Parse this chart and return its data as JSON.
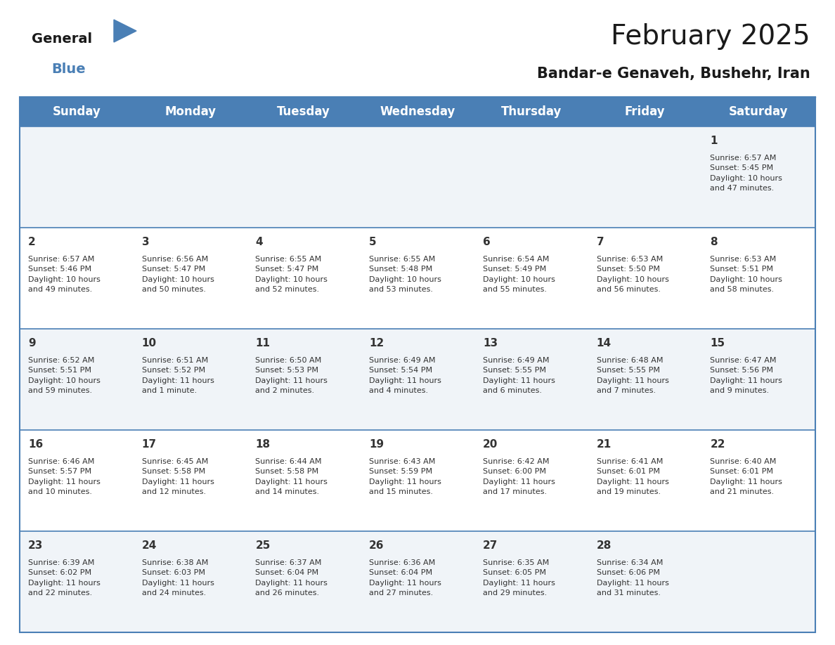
{
  "title": "February 2025",
  "subtitle": "Bandar-e Genaveh, Bushehr, Iran",
  "header_color": "#4a7fb5",
  "header_text_color": "#ffffff",
  "row_bg_even": "#f0f4f8",
  "row_bg_odd": "#ffffff",
  "text_color": "#333333",
  "border_color": "#4a7fb5",
  "row_line_color": "#4a7fb5",
  "days_of_week": [
    "Sunday",
    "Monday",
    "Tuesday",
    "Wednesday",
    "Thursday",
    "Friday",
    "Saturday"
  ],
  "weeks": [
    [
      {
        "day": "",
        "info": ""
      },
      {
        "day": "",
        "info": ""
      },
      {
        "day": "",
        "info": ""
      },
      {
        "day": "",
        "info": ""
      },
      {
        "day": "",
        "info": ""
      },
      {
        "day": "",
        "info": ""
      },
      {
        "day": "1",
        "info": "Sunrise: 6:57 AM\nSunset: 5:45 PM\nDaylight: 10 hours\nand 47 minutes."
      }
    ],
    [
      {
        "day": "2",
        "info": "Sunrise: 6:57 AM\nSunset: 5:46 PM\nDaylight: 10 hours\nand 49 minutes."
      },
      {
        "day": "3",
        "info": "Sunrise: 6:56 AM\nSunset: 5:47 PM\nDaylight: 10 hours\nand 50 minutes."
      },
      {
        "day": "4",
        "info": "Sunrise: 6:55 AM\nSunset: 5:47 PM\nDaylight: 10 hours\nand 52 minutes."
      },
      {
        "day": "5",
        "info": "Sunrise: 6:55 AM\nSunset: 5:48 PM\nDaylight: 10 hours\nand 53 minutes."
      },
      {
        "day": "6",
        "info": "Sunrise: 6:54 AM\nSunset: 5:49 PM\nDaylight: 10 hours\nand 55 minutes."
      },
      {
        "day": "7",
        "info": "Sunrise: 6:53 AM\nSunset: 5:50 PM\nDaylight: 10 hours\nand 56 minutes."
      },
      {
        "day": "8",
        "info": "Sunrise: 6:53 AM\nSunset: 5:51 PM\nDaylight: 10 hours\nand 58 minutes."
      }
    ],
    [
      {
        "day": "9",
        "info": "Sunrise: 6:52 AM\nSunset: 5:51 PM\nDaylight: 10 hours\nand 59 minutes."
      },
      {
        "day": "10",
        "info": "Sunrise: 6:51 AM\nSunset: 5:52 PM\nDaylight: 11 hours\nand 1 minute."
      },
      {
        "day": "11",
        "info": "Sunrise: 6:50 AM\nSunset: 5:53 PM\nDaylight: 11 hours\nand 2 minutes."
      },
      {
        "day": "12",
        "info": "Sunrise: 6:49 AM\nSunset: 5:54 PM\nDaylight: 11 hours\nand 4 minutes."
      },
      {
        "day": "13",
        "info": "Sunrise: 6:49 AM\nSunset: 5:55 PM\nDaylight: 11 hours\nand 6 minutes."
      },
      {
        "day": "14",
        "info": "Sunrise: 6:48 AM\nSunset: 5:55 PM\nDaylight: 11 hours\nand 7 minutes."
      },
      {
        "day": "15",
        "info": "Sunrise: 6:47 AM\nSunset: 5:56 PM\nDaylight: 11 hours\nand 9 minutes."
      }
    ],
    [
      {
        "day": "16",
        "info": "Sunrise: 6:46 AM\nSunset: 5:57 PM\nDaylight: 11 hours\nand 10 minutes."
      },
      {
        "day": "17",
        "info": "Sunrise: 6:45 AM\nSunset: 5:58 PM\nDaylight: 11 hours\nand 12 minutes."
      },
      {
        "day": "18",
        "info": "Sunrise: 6:44 AM\nSunset: 5:58 PM\nDaylight: 11 hours\nand 14 minutes."
      },
      {
        "day": "19",
        "info": "Sunrise: 6:43 AM\nSunset: 5:59 PM\nDaylight: 11 hours\nand 15 minutes."
      },
      {
        "day": "20",
        "info": "Sunrise: 6:42 AM\nSunset: 6:00 PM\nDaylight: 11 hours\nand 17 minutes."
      },
      {
        "day": "21",
        "info": "Sunrise: 6:41 AM\nSunset: 6:01 PM\nDaylight: 11 hours\nand 19 minutes."
      },
      {
        "day": "22",
        "info": "Sunrise: 6:40 AM\nSunset: 6:01 PM\nDaylight: 11 hours\nand 21 minutes."
      }
    ],
    [
      {
        "day": "23",
        "info": "Sunrise: 6:39 AM\nSunset: 6:02 PM\nDaylight: 11 hours\nand 22 minutes."
      },
      {
        "day": "24",
        "info": "Sunrise: 6:38 AM\nSunset: 6:03 PM\nDaylight: 11 hours\nand 24 minutes."
      },
      {
        "day": "25",
        "info": "Sunrise: 6:37 AM\nSunset: 6:04 PM\nDaylight: 11 hours\nand 26 minutes."
      },
      {
        "day": "26",
        "info": "Sunrise: 6:36 AM\nSunset: 6:04 PM\nDaylight: 11 hours\nand 27 minutes."
      },
      {
        "day": "27",
        "info": "Sunrise: 6:35 AM\nSunset: 6:05 PM\nDaylight: 11 hours\nand 29 minutes."
      },
      {
        "day": "28",
        "info": "Sunrise: 6:34 AM\nSunset: 6:06 PM\nDaylight: 11 hours\nand 31 minutes."
      },
      {
        "day": "",
        "info": ""
      }
    ]
  ],
  "logo_general_color": "#1a1a1a",
  "logo_blue_color": "#4a7fb5",
  "title_fontsize": 28,
  "subtitle_fontsize": 15,
  "header_fontsize": 12,
  "day_num_fontsize": 11,
  "info_fontsize": 8
}
